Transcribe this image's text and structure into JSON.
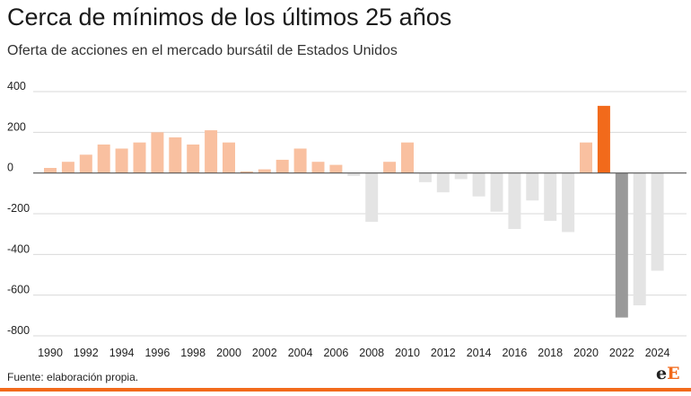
{
  "header": {
    "title": "Cerca de mínimos de los últimos 25 años",
    "subtitle": "Oferta de acciones en el mercado bursátil de Estados Unidos"
  },
  "footer": {
    "source": "Fuente: elaboración propia.",
    "logo_left": "e",
    "logo_right": "E"
  },
  "colors": {
    "positive": "#f9c0a0",
    "negative": "#e4e4e4",
    "highlight_positive": "#f26a1b",
    "highlight_negative": "#999999",
    "grid": "#d9d9d9",
    "zero_line": "#555555"
  },
  "chart_data": {
    "type": "bar",
    "title": "Cerca de mínimos de los últimos 25 años",
    "subtitle": "Oferta de acciones en el mercado bursátil de Estados Unidos",
    "xlabel": "",
    "ylabel": "",
    "ylim": [
      -800,
      400
    ],
    "yticks": [
      400,
      200,
      0,
      -200,
      -400,
      -600,
      -800
    ],
    "xtick_labels": [
      "1990",
      "1992",
      "1994",
      "1996",
      "1998",
      "2000",
      "2002",
      "2004",
      "2006",
      "2008",
      "2010",
      "2012",
      "2014",
      "2016",
      "2018",
      "2020",
      "2022",
      "2024"
    ],
    "categories": [
      1990,
      1991,
      1992,
      1993,
      1994,
      1995,
      1996,
      1997,
      1998,
      1999,
      2000,
      2001,
      2002,
      2003,
      2004,
      2005,
      2006,
      2007,
      2008,
      2009,
      2010,
      2011,
      2012,
      2013,
      2014,
      2015,
      2016,
      2017,
      2018,
      2019,
      2020,
      2021,
      2022,
      2023,
      2024
    ],
    "values": [
      25,
      55,
      90,
      140,
      120,
      150,
      200,
      175,
      140,
      210,
      150,
      8,
      18,
      65,
      120,
      55,
      40,
      -15,
      -240,
      55,
      150,
      -45,
      -95,
      -30,
      -115,
      -190,
      -275,
      -135,
      -235,
      -290,
      150,
      330,
      -710,
      -650,
      -480
    ],
    "highlight": [
      2021,
      2022
    ],
    "grid": true
  }
}
